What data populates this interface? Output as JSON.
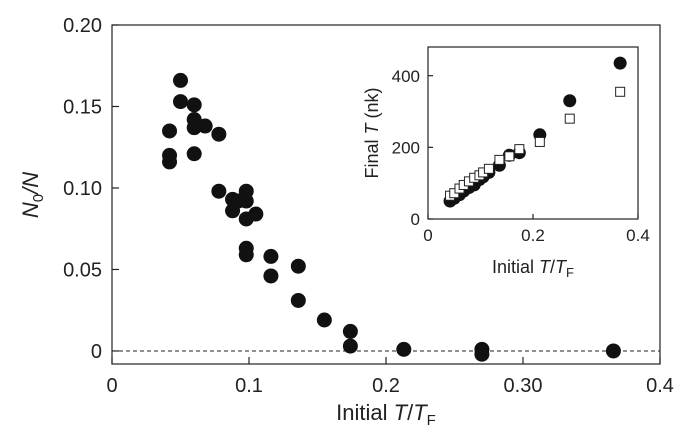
{
  "chart_data": [
    {
      "type": "scatter",
      "xlabel": {
        "prefix": "Initial ",
        "var": "T",
        "sep": "/",
        "var2": "T",
        "sub": "F"
      },
      "ylabel": {
        "var": "N",
        "sub": "0",
        "rest": "/N"
      },
      "xlim": [
        0,
        0.4
      ],
      "ylim": [
        -0.008,
        0.2
      ],
      "xticks": [
        0,
        0.1,
        0.2,
        0.3,
        0.4
      ],
      "xtick_labels": [
        "0",
        "0.1",
        "0.2",
        "0.30",
        "0.4"
      ],
      "yticks": [
        0,
        0.05,
        0.1,
        0.15,
        0.2
      ],
      "ytick_labels": [
        "0",
        "0.05",
        "0.10",
        "0.15",
        "0.20"
      ],
      "reference_line": {
        "y": 0,
        "style": "dashed"
      },
      "series": [
        {
          "marker": "filled-circle",
          "x": [
            0.042,
            0.042,
            0.042,
            0.05,
            0.05,
            0.06,
            0.06,
            0.06,
            0.06,
            0.068,
            0.078,
            0.078,
            0.088,
            0.088,
            0.092,
            0.098,
            0.098,
            0.098,
            0.098,
            0.098,
            0.105,
            0.116,
            0.116,
            0.136,
            0.136,
            0.155,
            0.174,
            0.174,
            0.213,
            0.27,
            0.27,
            0.366
          ],
          "y": [
            0.135,
            0.12,
            0.116,
            0.166,
            0.153,
            0.151,
            0.142,
            0.137,
            0.121,
            0.138,
            0.133,
            0.098,
            0.093,
            0.086,
            0.092,
            0.098,
            0.092,
            0.081,
            0.063,
            0.059,
            0.084,
            0.058,
            0.046,
            0.052,
            0.031,
            0.019,
            0.012,
            0.003,
            0.001,
            0.001,
            -0.002,
            0.0
          ]
        }
      ]
    },
    {
      "type": "scatter",
      "xlabel": {
        "prefix": "Initial ",
        "var": "T",
        "sep": "/",
        "var2": "T",
        "sub": "F"
      },
      "ylabel": {
        "prefix": "Final ",
        "var": "T",
        "rest": " (nk)"
      },
      "xlim": [
        0,
        0.4
      ],
      "ylim": [
        0,
        480
      ],
      "xticks": [
        0,
        0.2,
        0.4
      ],
      "xtick_labels": [
        "0",
        "0.2",
        "0.4"
      ],
      "yticks": [
        0,
        200,
        400
      ],
      "ytick_labels": [
        "0",
        "200",
        "400"
      ],
      "series": [
        {
          "marker": "filled-circle",
          "x": [
            0.042,
            0.05,
            0.06,
            0.068,
            0.078,
            0.088,
            0.098,
            0.105,
            0.116,
            0.136,
            0.155,
            0.174,
            0.213,
            0.27,
            0.366
          ],
          "y": [
            50,
            58,
            68,
            78,
            88,
            95,
            110,
            118,
            130,
            150,
            178,
            185,
            235,
            330,
            435
          ]
        },
        {
          "marker": "open-square",
          "x": [
            0.042,
            0.05,
            0.06,
            0.068,
            0.078,
            0.088,
            0.098,
            0.105,
            0.116,
            0.136,
            0.155,
            0.174,
            0.213,
            0.27,
            0.366
          ],
          "y": [
            65,
            72,
            85,
            95,
            105,
            115,
            122,
            130,
            140,
            165,
            175,
            195,
            215,
            280,
            355
          ]
        }
      ]
    }
  ]
}
